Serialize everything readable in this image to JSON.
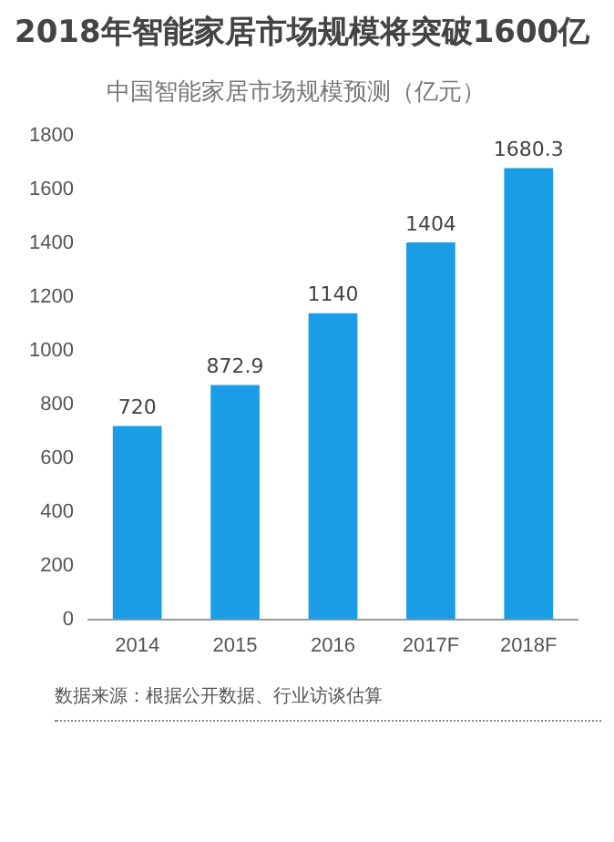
{
  "chart_data": {
    "type": "bar",
    "title": "2018年智能家居市场规模将突破1600亿",
    "subtitle": "中国智能家居市场规模预测（亿元）",
    "categories": [
      "2014",
      "2015",
      "2016",
      "2017F",
      "2018F"
    ],
    "values": [
      720,
      872.9,
      1140,
      1404,
      1680.3
    ],
    "color": "#1b9ce6",
    "ylim": [
      0,
      1800
    ],
    "yticks": [
      0,
      200,
      400,
      600,
      800,
      1000,
      1200,
      1400,
      1600,
      1800
    ],
    "grid": false,
    "legend": false,
    "data_labels": true,
    "annotations": [
      "数据来源：根据公开数据、行业访谈估算"
    ]
  }
}
